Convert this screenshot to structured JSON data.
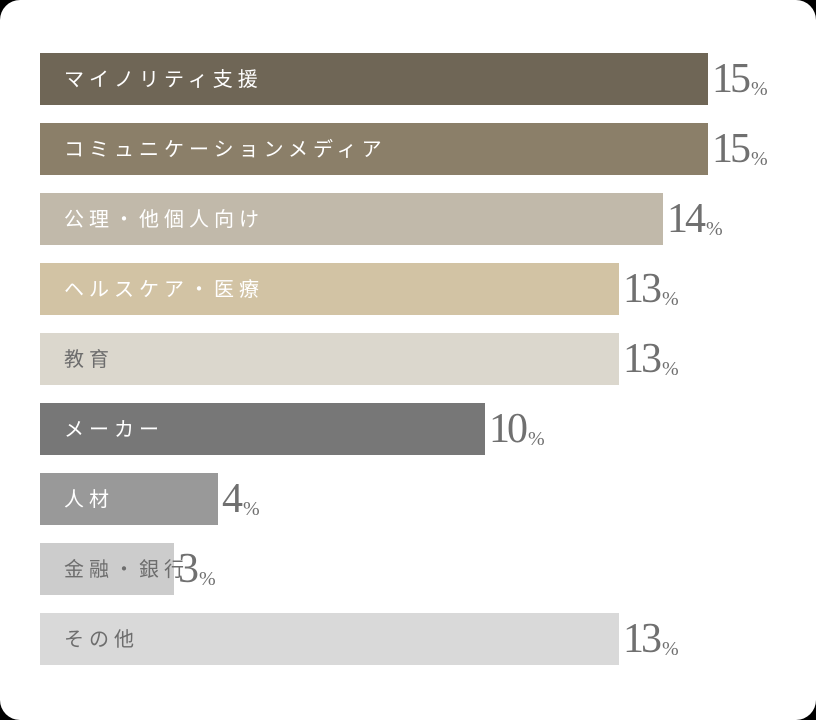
{
  "chart_data": {
    "type": "bar",
    "orientation": "horizontal",
    "title": "",
    "xlabel": "",
    "ylabel": "",
    "unit": "%",
    "grid": false,
    "legend": false,
    "categories": [
      "マイノリティ支援",
      "コミュニケーションメディア",
      "公理・他個人向け",
      "ヘルスケア・医療",
      "教育",
      "メーカー",
      "人材",
      "金融・銀行",
      "その他"
    ],
    "values": [
      15,
      15,
      14,
      13,
      13,
      10,
      4,
      3,
      13
    ],
    "colors": [
      "#6f6656",
      "#8b7f69",
      "#c1b9aa",
      "#d2c3a4",
      "#dbd7cd",
      "#777777",
      "#999999",
      "#cccccc",
      "#d9d9d9"
    ],
    "label_colors": [
      "#ffffff",
      "#ffffff",
      "#ffffff",
      "#ffffff",
      "#6d6d6d",
      "#ffffff",
      "#ffffff",
      "#6d6d6d",
      "#6d6d6d"
    ],
    "xlim": [
      0,
      15
    ]
  },
  "bars": [
    {
      "label": "マイノリティ支援",
      "value": "15",
      "unit": "%"
    },
    {
      "label": "コミュニケーションメディア",
      "value": "15",
      "unit": "%"
    },
    {
      "label": "公理・他個人向け",
      "value": "14",
      "unit": "%"
    },
    {
      "label": "ヘルスケア・医療",
      "value": "13",
      "unit": "%"
    },
    {
      "label": "教育",
      "value": "13",
      "unit": "%"
    },
    {
      "label": "メーカー",
      "value": "10",
      "unit": "%"
    },
    {
      "label": "人材",
      "value": "4",
      "unit": "%"
    },
    {
      "label": "金融・銀行",
      "value": "3",
      "unit": "%"
    },
    {
      "label": "その他",
      "value": "13",
      "unit": "%"
    }
  ]
}
